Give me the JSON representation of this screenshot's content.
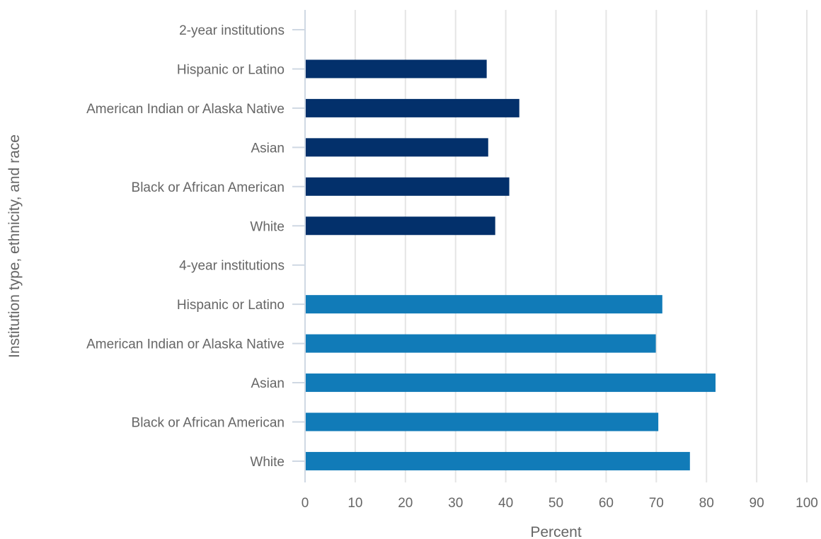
{
  "chart_data": {
    "type": "bar",
    "orientation": "horizontal",
    "title": "",
    "xlabel": "Percent",
    "ylabel": "Institution type, ethnicity, and race",
    "xlim": [
      0,
      100
    ],
    "xticks": [
      0,
      10,
      20,
      30,
      40,
      50,
      60,
      70,
      80,
      90,
      100
    ],
    "grid": "vertical",
    "legend": "none",
    "categories": [
      "2-year institutions",
      "Hispanic or Latino",
      "American Indian or Alaska Native",
      "Asian",
      "Black or African American",
      "White",
      "4-year institutions",
      "Hispanic or Latino",
      "American Indian or Alaska Native",
      "Asian",
      "Black or African American",
      "White"
    ],
    "values": [
      null,
      36.2,
      42.7,
      36.5,
      40.7,
      37.9,
      null,
      71.2,
      69.9,
      81.8,
      70.4,
      76.7
    ],
    "group": [
      "2-year",
      "2-year",
      "2-year",
      "2-year",
      "2-year",
      "2-year",
      "4-year",
      "4-year",
      "4-year",
      "4-year",
      "4-year",
      "4-year"
    ],
    "colors": {
      "2-year": "#03306b",
      "4-year": "#117bb8"
    }
  }
}
